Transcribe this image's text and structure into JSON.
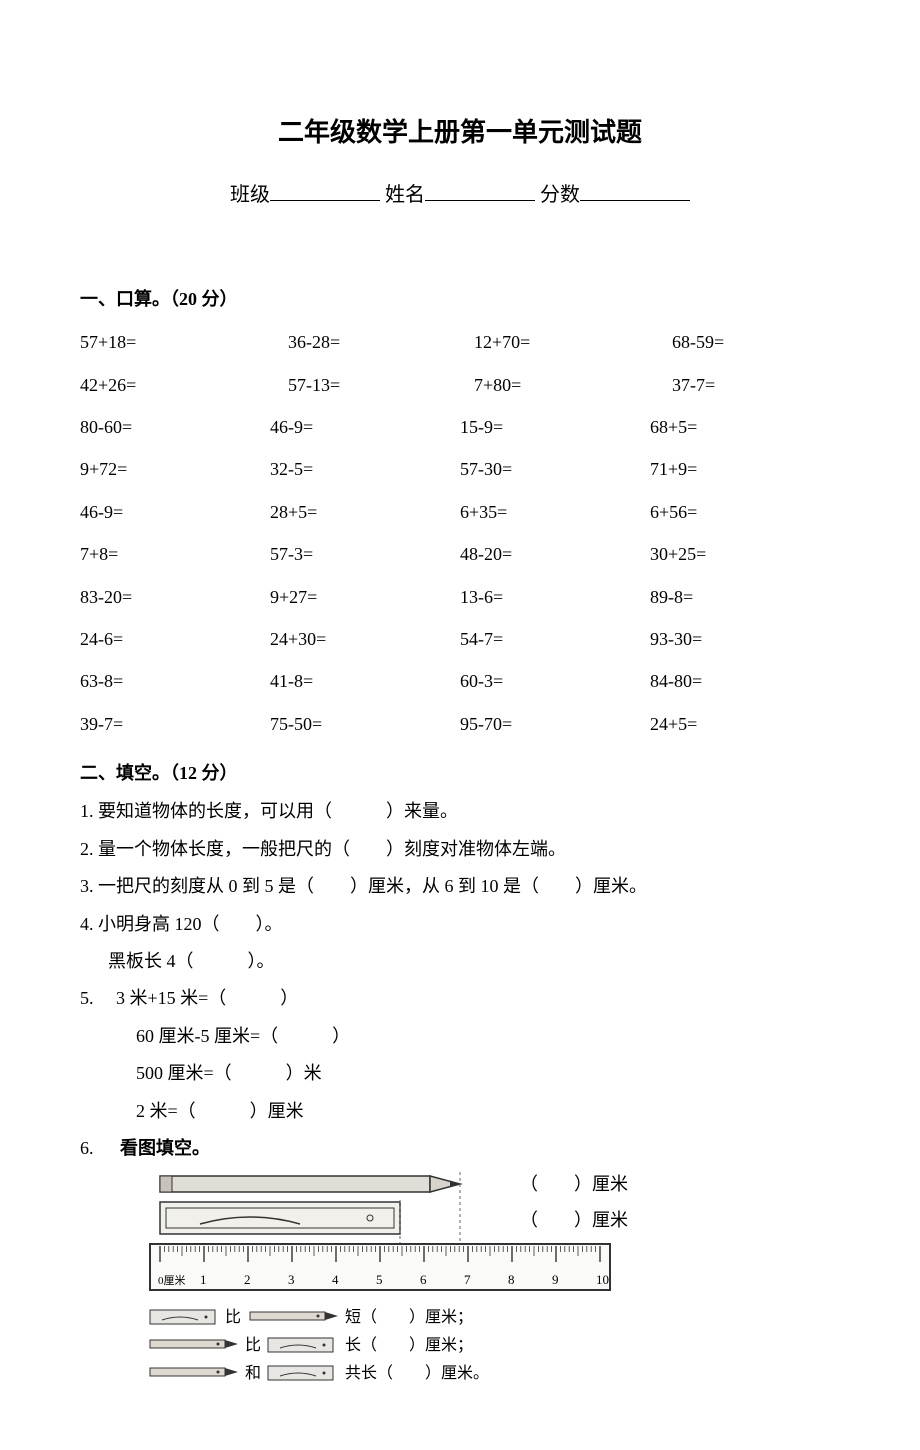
{
  "title": "二年级数学上册第一单元测试题",
  "info": {
    "class_label": "班级",
    "name_label": "姓名",
    "score_label": "分数"
  },
  "section1": {
    "header": "一、口算。（20 分）",
    "rows": [
      [
        "57+18=",
        "36-28=",
        "12+70=",
        "68-59="
      ],
      [
        "42+26=",
        "57-13=",
        "7+80=",
        "37-7="
      ],
      [
        "80-60=",
        "46-9=",
        "15-9=",
        "68+5="
      ],
      [
        "9+72=",
        "32-5=",
        "57-30=",
        "71+9="
      ],
      [
        "46-9=",
        "28+5=",
        "6+35=",
        "6+56="
      ],
      [
        "7+8=",
        "57-3=",
        "48-20=",
        "30+25="
      ],
      [
        "83-20=",
        "9+27=",
        "13-6=",
        "89-8="
      ],
      [
        "24-6=",
        "24+30=",
        "54-7=",
        "93-30="
      ],
      [
        "63-8=",
        "41-8=",
        "60-3=",
        "84-80="
      ],
      [
        "39-7=",
        "75-50=",
        "95-70=",
        "24+5="
      ]
    ]
  },
  "section2": {
    "header": "二、填空。（12 分）",
    "q1": "1. 要知道物体的长度，可以用（　　　）来量。",
    "q2": "2. 量一个物体长度，一般把尺的（　　）刻度对准物体左端。",
    "q3": "3. 一把尺的刻度从 0 到 5 是（　　）厘米，从 6 到 10 是（　　）厘米。",
    "q4a": "4. 小明身高 120（　　）。",
    "q4b": "黑板长 4（　　　）。",
    "q5a": "5.　 3 米+15 米=（　　　）",
    "q5b": "60 厘米-5 厘米=（　　　）",
    "q5c": "500 厘米=（　　　）米",
    "q5d": "2 米=（　　　）厘米",
    "q6num": "6.",
    "q6header": "看图填空。",
    "q6_pencil_label": "（　　）厘米",
    "q6_eraser_label": "（　　）厘米",
    "q6_line1": "比　　　　　短（　　）厘米；",
    "q6_line2": "比　　　　　长（　　）厘米；",
    "q6_line3": "和　　　　　共长（　　）厘米。",
    "ruler": {
      "start_label": "0厘米",
      "ticks": [
        "1",
        "2",
        "3",
        "4",
        "5",
        "6",
        "7",
        "8",
        "9",
        "10"
      ],
      "pencil_start": 0,
      "pencil_end": 7,
      "eraser_start": 1,
      "eraser_end": 6
    }
  },
  "colors": {
    "bg": "#ffffff",
    "text": "#000000",
    "ruler_fill": "#f4f4f4",
    "box_fill": "#e8e6e2",
    "stroke": "#333333"
  }
}
